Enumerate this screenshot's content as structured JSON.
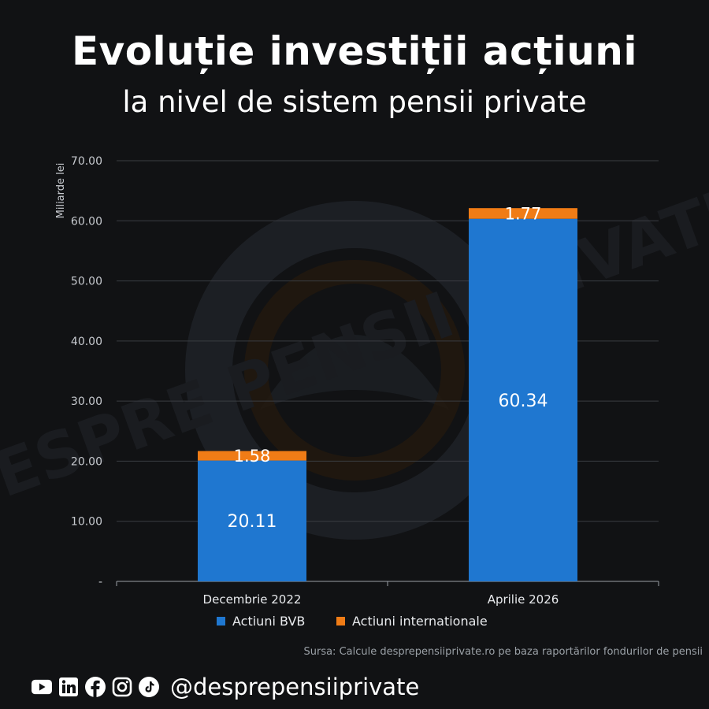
{
  "header": {
    "title": "Evoluție investiții acțiuni",
    "subtitle": "la nivel de sistem pensii private"
  },
  "source_note": "Sursa: Calcule desprepensiiprivate.ro pe baza raportărilor fondurilor de pensii",
  "footer": {
    "handle": "@desprepensiiprivate",
    "icons": [
      "youtube-icon",
      "linkedin-icon",
      "facebook-icon",
      "instagram-icon",
      "tiktok-icon"
    ]
  },
  "watermark_text": "DESPRE PENSII PRIVATE",
  "colors": {
    "bvb": "#1f77d0",
    "international": "#f07c16",
    "background": "#111214",
    "grid": "#3a3d42"
  },
  "chart_data": {
    "type": "bar",
    "stacked": true,
    "categories": [
      "Decembrie 2022",
      "Aprilie 2026"
    ],
    "series": [
      {
        "name": "Actiuni BVB",
        "values": [
          20.11,
          60.34
        ],
        "labels": [
          "20.11",
          "60.34"
        ]
      },
      {
        "name": "Actiuni internationale",
        "values": [
          1.58,
          1.77
        ],
        "labels": [
          "1.58",
          "1.77"
        ]
      }
    ],
    "ylabel": "Miliarde lei",
    "ylim": [
      0,
      70
    ],
    "yticks": [
      "-",
      "10.00",
      "20.00",
      "30.00",
      "40.00",
      "50.00",
      "60.00",
      "70.00"
    ],
    "grid": true,
    "legend_position": "bottom"
  }
}
